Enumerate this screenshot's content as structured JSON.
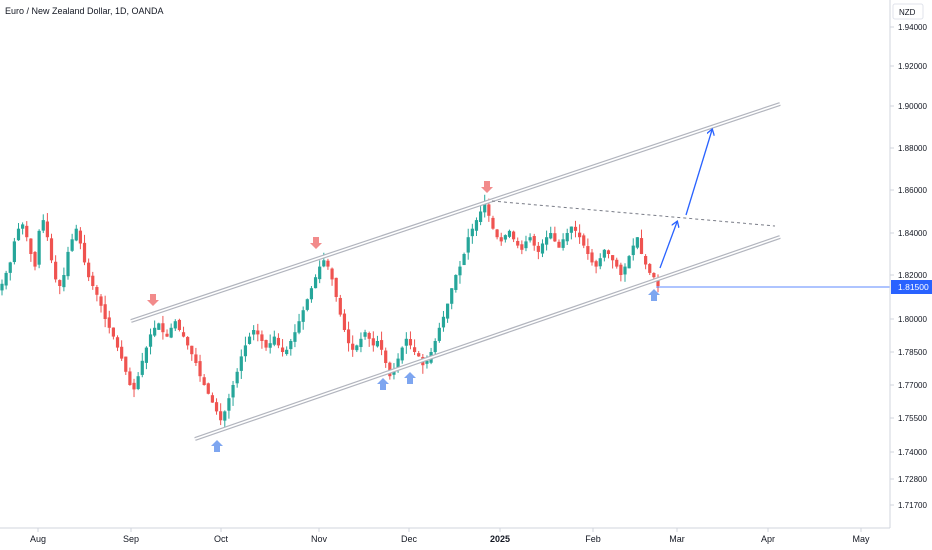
{
  "header": {
    "title": "Euro / New Zealand Dollar, 1D, OANDA"
  },
  "price_axis": {
    "currency": "NZD"
  },
  "chart_data": {
    "type": "candlestick",
    "title": "Euro / New Zealand Dollar, 1D, OANDA",
    "symbol": "EURNZD",
    "timeframe": "1D",
    "source": "OANDA",
    "y_ticks": [
      "1.94000",
      "1.92000",
      "1.90000",
      "1.88000",
      "1.86000",
      "1.84000",
      "1.82000",
      "1.80000",
      "1.78500",
      "1.77000",
      "1.75500",
      "1.74000",
      "1.72800",
      "1.71700"
    ],
    "x_ticks": [
      {
        "label": "Aug",
        "bold": false
      },
      {
        "label": "Sep",
        "bold": false
      },
      {
        "label": "Oct",
        "bold": false
      },
      {
        "label": "Nov",
        "bold": false
      },
      {
        "label": "Dec",
        "bold": false
      },
      {
        "label": "2025",
        "bold": true
      },
      {
        "label": "Feb",
        "bold": false
      },
      {
        "label": "Mar",
        "bold": false
      },
      {
        "label": "Apr",
        "bold": false
      },
      {
        "label": "May",
        "bold": false
      }
    ],
    "last_price": "1.81500",
    "colors": {
      "up": "#26a69a",
      "down": "#ef5350",
      "channel": "#b2b5be",
      "arrow": "#2962ff",
      "marker_up": "#7ea6f0",
      "marker_down": "#f28b8b",
      "price_line": "#2962ff"
    },
    "closes": [
      1.816,
      1.821,
      1.826,
      1.836,
      1.842,
      1.844,
      1.838,
      1.83,
      1.824,
      1.841,
      1.846,
      1.838,
      1.827,
      1.818,
      1.815,
      1.82,
      1.831,
      1.837,
      1.842,
      1.835,
      1.826,
      1.819,
      1.815,
      1.811,
      1.806,
      1.8,
      1.796,
      1.792,
      1.787,
      1.782,
      1.776,
      1.77,
      1.768,
      1.774,
      1.781,
      1.787,
      1.793,
      1.796,
      1.798,
      1.794,
      1.792,
      1.796,
      1.799,
      1.795,
      1.792,
      1.788,
      1.784,
      1.78,
      1.774,
      1.77,
      1.766,
      1.762,
      1.758,
      1.754,
      1.758,
      1.764,
      1.77,
      1.776,
      1.783,
      1.788,
      1.792,
      1.795,
      1.793,
      1.79,
      1.787,
      1.789,
      1.792,
      1.788,
      1.785,
      1.786,
      1.79,
      1.794,
      1.799,
      1.804,
      1.809,
      1.814,
      1.819,
      1.824,
      1.827,
      1.824,
      1.818,
      1.81,
      1.802,
      1.795,
      1.789,
      1.786,
      1.788,
      1.791,
      1.794,
      1.791,
      1.788,
      1.79,
      1.786,
      1.78,
      1.774,
      1.777,
      1.782,
      1.787,
      1.791,
      1.788,
      1.785,
      1.783,
      1.779,
      1.781,
      1.785,
      1.79,
      1.796,
      1.801,
      1.807,
      1.814,
      1.82,
      1.824,
      1.83,
      1.838,
      1.842,
      1.846,
      1.85,
      1.854,
      1.848,
      1.842,
      1.838,
      1.836,
      1.839,
      1.841,
      1.837,
      1.834,
      1.832,
      1.836,
      1.838,
      1.834,
      1.831,
      1.835,
      1.838,
      1.84,
      1.836,
      1.833,
      1.837,
      1.84,
      1.843,
      1.841,
      1.838,
      1.834,
      1.83,
      1.826,
      1.824,
      1.828,
      1.832,
      1.83,
      1.827,
      1.824,
      1.82,
      1.824,
      1.829,
      1.834,
      1.838,
      1.83,
      1.825,
      1.821,
      1.819,
      1.815
    ],
    "annotations": {
      "channel": "ascending parallel channel",
      "upper_targets": "two projected upward moves",
      "triangle_resistance": "dashed descending line from late-December high"
    }
  }
}
